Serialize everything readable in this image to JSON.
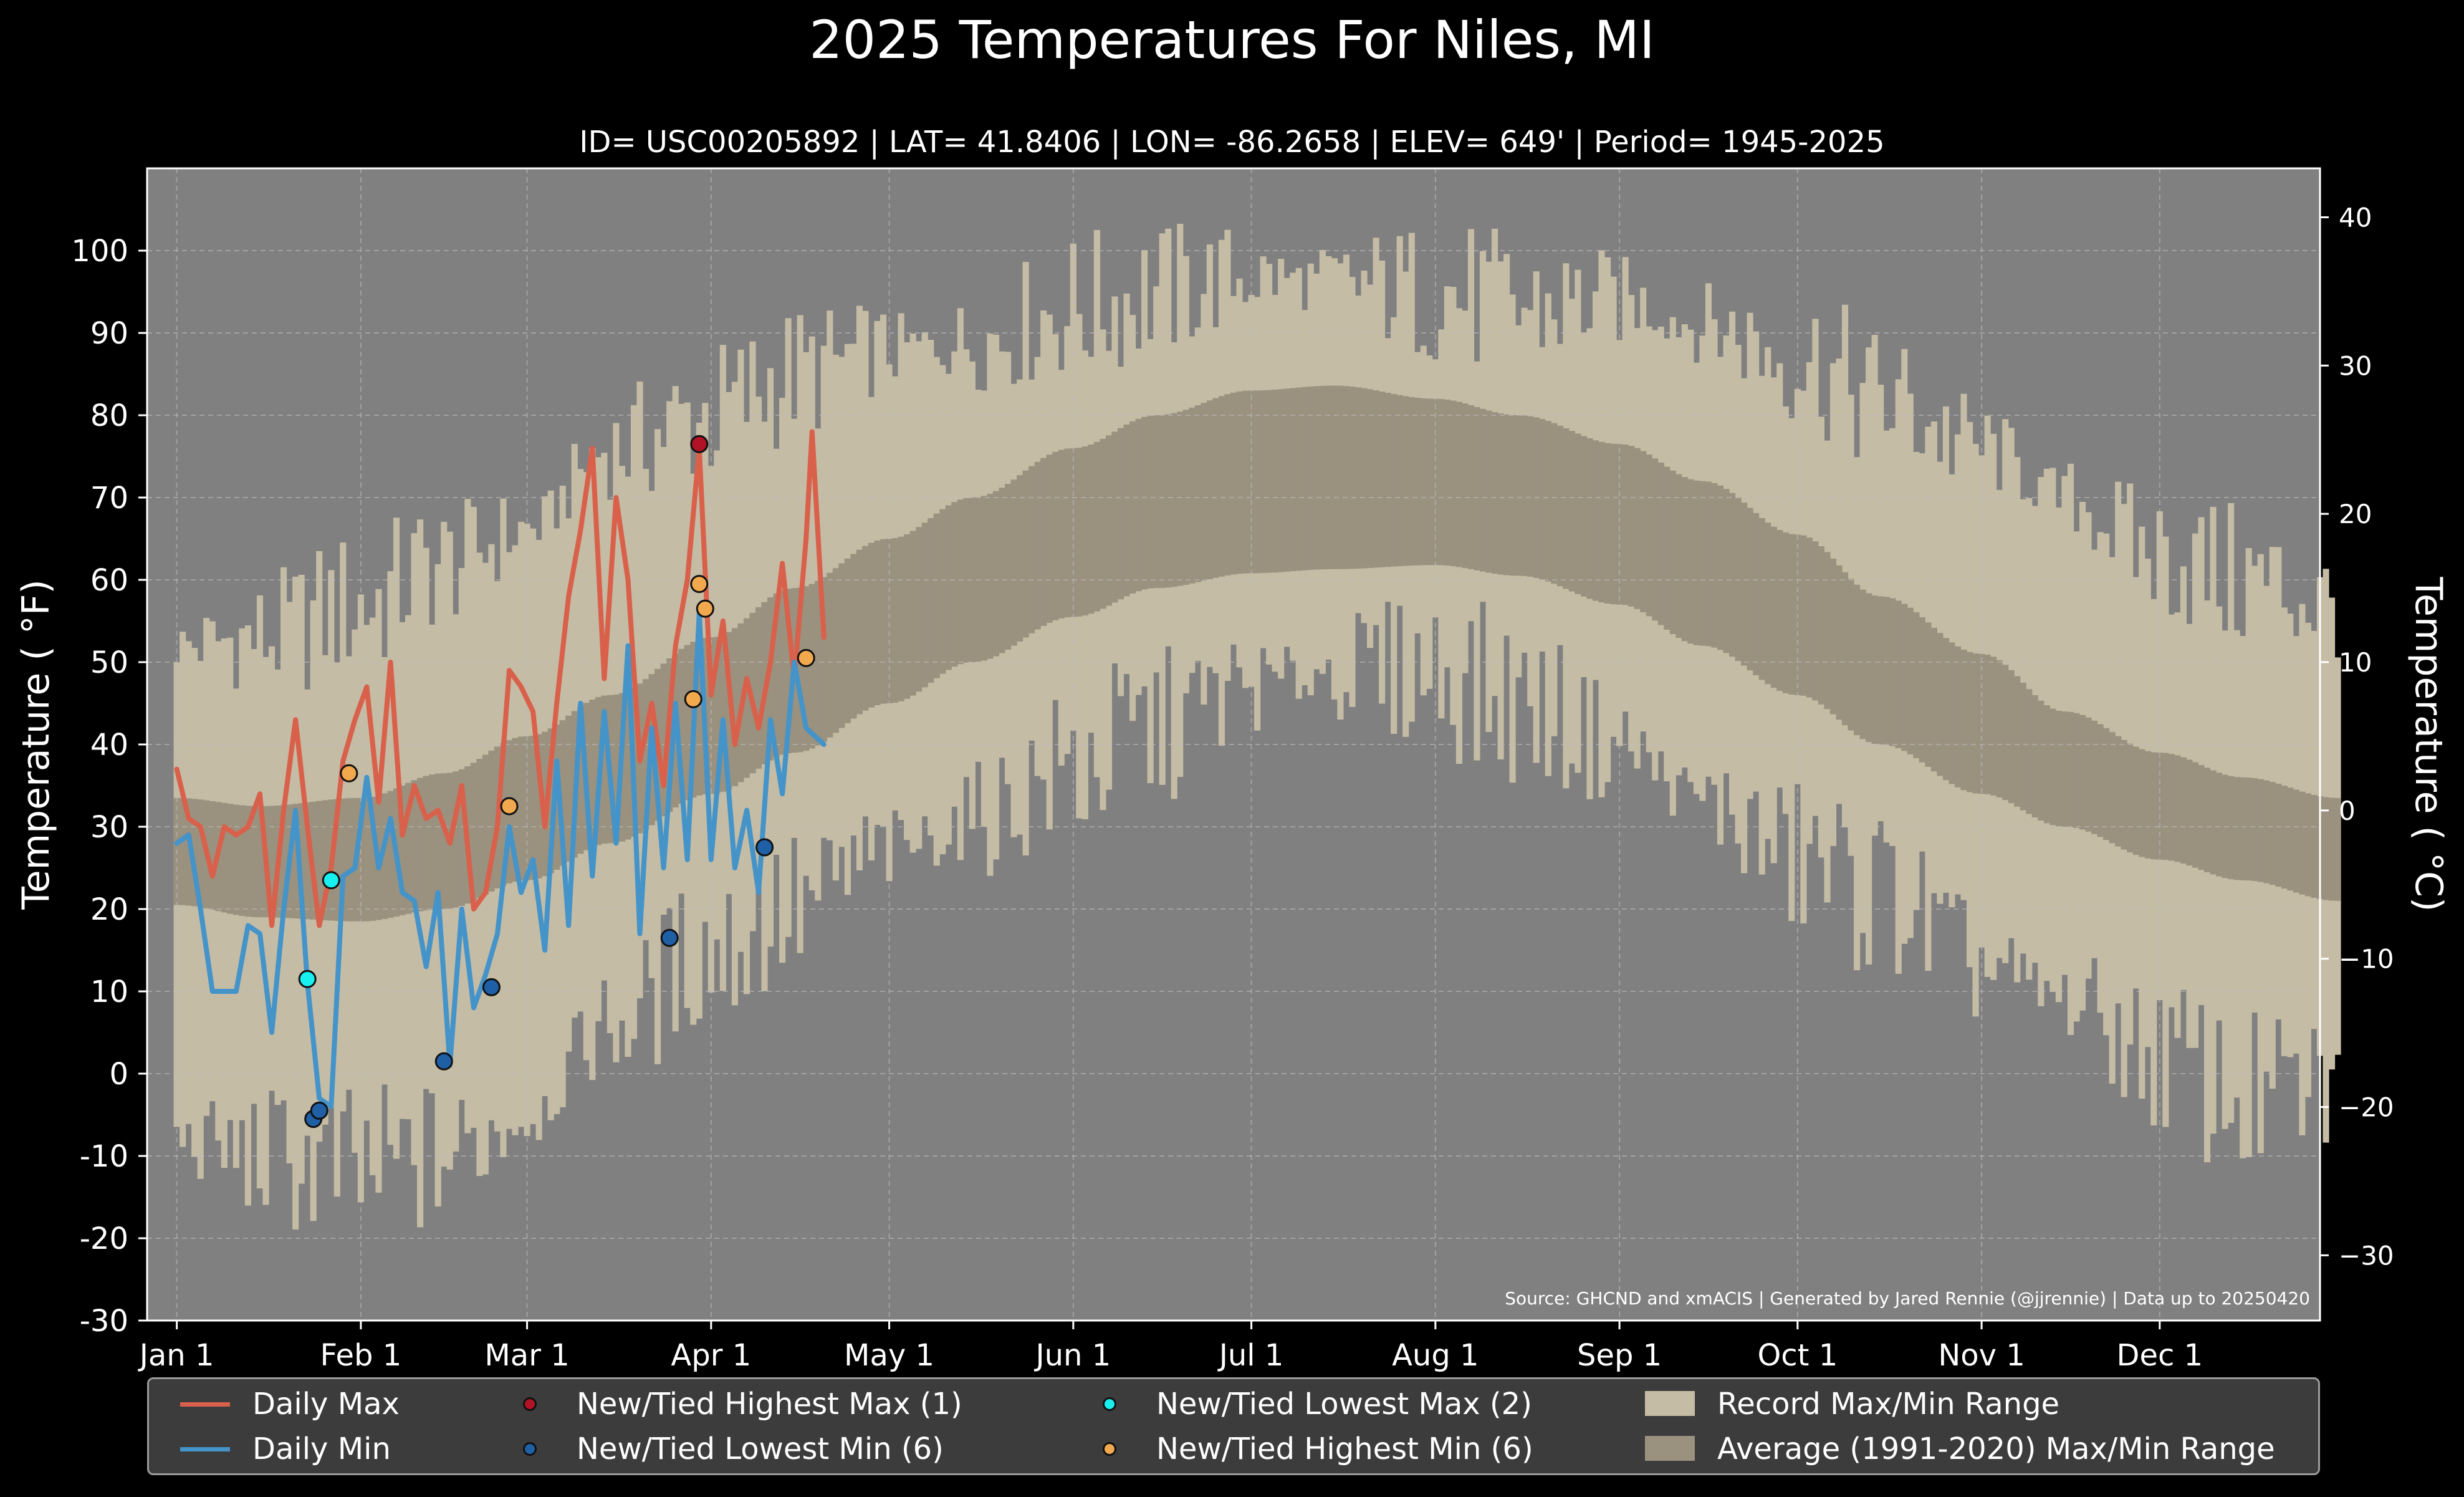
{
  "title": "2025 Temperatures For Niles, MI",
  "subtitle": "ID= USC00205892 | LAT= 41.8406 | LON= -86.2658 | ELEV= 649' | Period= 1945-2025",
  "source_note": "Source: GHCND and xmACIS | Generated by Jared Rennie (@jjrennie) | Data up to 20250420",
  "colors": {
    "background": "#000000",
    "plot_background": "#808080",
    "record_range": "#c5bca5",
    "average_range": "#9a917f",
    "daily_max": "#d9604a",
    "daily_min": "#4493c9",
    "highest_max": "#b11226",
    "lowest_min": "#1f5fa6",
    "lowest_max": "#18f0f0",
    "highest_min": "#f2a94e"
  },
  "legend": {
    "items": [
      {
        "label": "Daily Max",
        "kind": "line",
        "color": "#d9604a"
      },
      {
        "label": "Daily Min",
        "kind": "line",
        "color": "#4493c9"
      },
      {
        "label": "New/Tied Highest Max (1)",
        "kind": "dot",
        "color": "#b11226"
      },
      {
        "label": "New/Tied Lowest Min (6)",
        "kind": "dot",
        "color": "#1f5fa6"
      },
      {
        "label": "New/Tied Lowest Max (2)",
        "kind": "dot",
        "color": "#18f0f0"
      },
      {
        "label": "New/Tied Highest Min (6)",
        "kind": "dot",
        "color": "#f2a94e"
      },
      {
        "label": "Record Max/Min Range",
        "kind": "patch",
        "color": "#c5bca5"
      },
      {
        "label": "Average (1991-2020) Max/Min Range",
        "kind": "patch",
        "color": "#9a917f"
      }
    ]
  },
  "chart_data": {
    "type": "line",
    "title": "2025 Temperatures For Niles, MI",
    "ylabel": "Temperature ($^\\circ$F)",
    "ylabel_text": "Temperature ( °F)",
    "y2label_text": "Temperature ( °C)",
    "ylim": [
      -30,
      110
    ],
    "y2lim_celsius": [
      -34.4,
      43.3
    ],
    "yticks": [
      -30,
      -20,
      -10,
      0,
      10,
      20,
      30,
      40,
      50,
      60,
      70,
      80,
      90,
      100
    ],
    "ytick_labels": [
      "-30",
      "-20",
      "-10",
      "0",
      "10",
      "20",
      "30",
      "40",
      "50",
      "60",
      "70",
      "80",
      "90",
      "100"
    ],
    "y2ticks": [
      -30,
      -20,
      -10,
      0,
      10,
      20,
      30,
      40
    ],
    "y2tick_labels": [
      "−30",
      "−20",
      "−10",
      "0",
      "10",
      "20",
      "30",
      "40"
    ],
    "x_axis": "day of year 2025",
    "xlim": [
      "2024-12-27",
      "2025-12-28"
    ],
    "xticks": [
      "2025-01-01",
      "2025-02-01",
      "2025-03-01",
      "2025-04-01",
      "2025-05-01",
      "2025-06-01",
      "2025-07-01",
      "2025-08-01",
      "2025-09-01",
      "2025-10-01",
      "2025-11-01",
      "2025-12-01"
    ],
    "xtick_labels": [
      "Jan 1",
      "Feb 1",
      "Mar 1",
      "Apr 1",
      "May 1",
      "Jun 1",
      "Jul 1",
      "Aug 1",
      "Sep 1",
      "Oct 1",
      "Nov 1",
      "Dec 1"
    ],
    "grid": true,
    "legend_position": "bottom",
    "record_max_anchors": [
      [
        "2025-01-01",
        52
      ],
      [
        "2025-01-15",
        53
      ],
      [
        "2025-02-01",
        57
      ],
      [
        "2025-02-15",
        62
      ],
      [
        "2025-03-01",
        66
      ],
      [
        "2025-03-15",
        76
      ],
      [
        "2025-04-01",
        80
      ],
      [
        "2025-04-15",
        85
      ],
      [
        "2025-05-01",
        88
      ],
      [
        "2025-05-15",
        89
      ],
      [
        "2025-06-01",
        93
      ],
      [
        "2025-06-15",
        95
      ],
      [
        "2025-07-01",
        97
      ],
      [
        "2025-07-15",
        96
      ],
      [
        "2025-08-01",
        95
      ],
      [
        "2025-08-15",
        93
      ],
      [
        "2025-09-01",
        94
      ],
      [
        "2025-09-15",
        91
      ],
      [
        "2025-10-01",
        87
      ],
      [
        "2025-10-15",
        82
      ],
      [
        "2025-11-01",
        76
      ],
      [
        "2025-11-15",
        70
      ],
      [
        "2025-12-01",
        63
      ],
      [
        "2025-12-15",
        60
      ],
      [
        "2025-12-31",
        57
      ]
    ],
    "record_min_anchors": [
      [
        "2025-01-01",
        -8
      ],
      [
        "2025-01-15",
        -10
      ],
      [
        "2025-02-01",
        -12
      ],
      [
        "2025-02-15",
        -10
      ],
      [
        "2025-03-01",
        -5
      ],
      [
        "2025-03-15",
        6
      ],
      [
        "2025-04-01",
        15
      ],
      [
        "2025-04-15",
        20
      ],
      [
        "2025-05-01",
        27
      ],
      [
        "2025-05-15",
        31
      ],
      [
        "2025-06-01",
        37
      ],
      [
        "2025-06-15",
        42
      ],
      [
        "2025-07-01",
        47
      ],
      [
        "2025-07-15",
        49
      ],
      [
        "2025-08-01",
        49
      ],
      [
        "2025-08-15",
        45
      ],
      [
        "2025-09-01",
        40
      ],
      [
        "2025-09-15",
        33
      ],
      [
        "2025-10-01",
        26
      ],
      [
        "2025-10-15",
        22
      ],
      [
        "2025-11-01",
        13
      ],
      [
        "2025-11-15",
        9
      ],
      [
        "2025-12-01",
        2
      ],
      [
        "2025-12-15",
        -3
      ],
      [
        "2025-12-31",
        -2
      ]
    ],
    "average_max_anchors": [
      [
        "2025-01-01",
        33.5
      ],
      [
        "2025-01-15",
        32.5
      ],
      [
        "2025-02-01",
        33.5
      ],
      [
        "2025-02-15",
        36.5
      ],
      [
        "2025-03-01",
        41
      ],
      [
        "2025-03-15",
        46
      ],
      [
        "2025-04-01",
        53
      ],
      [
        "2025-04-15",
        59
      ],
      [
        "2025-05-01",
        65
      ],
      [
        "2025-05-15",
        70
      ],
      [
        "2025-06-01",
        76
      ],
      [
        "2025-06-15",
        80
      ],
      [
        "2025-07-01",
        83
      ],
      [
        "2025-07-15",
        83.6
      ],
      [
        "2025-08-01",
        82
      ],
      [
        "2025-08-15",
        80
      ],
      [
        "2025-09-01",
        76.5
      ],
      [
        "2025-09-15",
        72
      ],
      [
        "2025-10-01",
        65.5
      ],
      [
        "2025-10-15",
        58
      ],
      [
        "2025-11-01",
        51
      ],
      [
        "2025-11-15",
        44
      ],
      [
        "2025-12-01",
        39
      ],
      [
        "2025-12-15",
        36
      ],
      [
        "2025-12-31",
        33.5
      ]
    ],
    "average_min_anchors": [
      [
        "2025-01-01",
        20.5
      ],
      [
        "2025-01-15",
        19
      ],
      [
        "2025-02-01",
        18.5
      ],
      [
        "2025-02-15",
        20
      ],
      [
        "2025-03-01",
        23.5
      ],
      [
        "2025-03-15",
        28
      ],
      [
        "2025-04-01",
        34
      ],
      [
        "2025-04-15",
        39
      ],
      [
        "2025-05-01",
        45
      ],
      [
        "2025-05-15",
        50
      ],
      [
        "2025-06-01",
        55.5
      ],
      [
        "2025-06-15",
        59
      ],
      [
        "2025-07-01",
        60.8
      ],
      [
        "2025-07-15",
        61.3
      ],
      [
        "2025-08-01",
        61.8
      ],
      [
        "2025-08-15",
        60.5
      ],
      [
        "2025-09-01",
        57
      ],
      [
        "2025-09-15",
        52
      ],
      [
        "2025-10-01",
        46
      ],
      [
        "2025-10-15",
        40
      ],
      [
        "2025-11-01",
        34
      ],
      [
        "2025-11-15",
        30
      ],
      [
        "2025-12-01",
        26
      ],
      [
        "2025-12-15",
        23.5
      ],
      [
        "2025-12-31",
        21
      ]
    ],
    "series": [
      {
        "name": "Daily Max",
        "color": "#d9604a",
        "points": [
          [
            "2025-01-01",
            37
          ],
          [
            "2025-01-03",
            31
          ],
          [
            "2025-01-05",
            30
          ],
          [
            "2025-01-07",
            24
          ],
          [
            "2025-01-09",
            30
          ],
          [
            "2025-01-11",
            29
          ],
          [
            "2025-01-13",
            30
          ],
          [
            "2025-01-15",
            34
          ],
          [
            "2025-01-17",
            18
          ],
          [
            "2025-01-19",
            32
          ],
          [
            "2025-01-21",
            43
          ],
          [
            "2025-01-23",
            30
          ],
          [
            "2025-01-25",
            18
          ],
          [
            "2025-01-27",
            25
          ],
          [
            "2025-01-29",
            38
          ],
          [
            "2025-01-31",
            43
          ],
          [
            "2025-02-02",
            47
          ],
          [
            "2025-02-04",
            33
          ],
          [
            "2025-02-06",
            50
          ],
          [
            "2025-02-08",
            29
          ],
          [
            "2025-02-10",
            35
          ],
          [
            "2025-02-12",
            31
          ],
          [
            "2025-02-14",
            32
          ],
          [
            "2025-02-16",
            28
          ],
          [
            "2025-02-18",
            35
          ],
          [
            "2025-02-20",
            20
          ],
          [
            "2025-02-22",
            22
          ],
          [
            "2025-02-24",
            30
          ],
          [
            "2025-02-26",
            49
          ],
          [
            "2025-02-28",
            47
          ],
          [
            "2025-03-02",
            44
          ],
          [
            "2025-03-04",
            30
          ],
          [
            "2025-03-06",
            45
          ],
          [
            "2025-03-08",
            58
          ],
          [
            "2025-03-10",
            66
          ],
          [
            "2025-03-12",
            76
          ],
          [
            "2025-03-14",
            48
          ],
          [
            "2025-03-16",
            70
          ],
          [
            "2025-03-18",
            60
          ],
          [
            "2025-03-20",
            38
          ],
          [
            "2025-03-22",
            45
          ],
          [
            "2025-03-24",
            35
          ],
          [
            "2025-03-26",
            52
          ],
          [
            "2025-03-28",
            60
          ],
          [
            "2025-03-30",
            76
          ],
          [
            "2025-04-01",
            46
          ],
          [
            "2025-04-03",
            55
          ],
          [
            "2025-04-05",
            40
          ],
          [
            "2025-04-07",
            48
          ],
          [
            "2025-04-09",
            42
          ],
          [
            "2025-04-11",
            50
          ],
          [
            "2025-04-13",
            62
          ],
          [
            "2025-04-15",
            48
          ],
          [
            "2025-04-17",
            65
          ],
          [
            "2025-04-18",
            78
          ],
          [
            "2025-04-20",
            53
          ]
        ]
      },
      {
        "name": "Daily Min",
        "color": "#4493c9",
        "points": [
          [
            "2025-01-01",
            28
          ],
          [
            "2025-01-03",
            29
          ],
          [
            "2025-01-05",
            20
          ],
          [
            "2025-01-07",
            10
          ],
          [
            "2025-01-09",
            10
          ],
          [
            "2025-01-11",
            10
          ],
          [
            "2025-01-13",
            18
          ],
          [
            "2025-01-15",
            17
          ],
          [
            "2025-01-17",
            5
          ],
          [
            "2025-01-19",
            20
          ],
          [
            "2025-01-21",
            32
          ],
          [
            "2025-01-23",
            11
          ],
          [
            "2025-01-25",
            -3
          ],
          [
            "2025-01-27",
            -4
          ],
          [
            "2025-01-29",
            24
          ],
          [
            "2025-01-31",
            25
          ],
          [
            "2025-02-02",
            36
          ],
          [
            "2025-02-04",
            25
          ],
          [
            "2025-02-06",
            31
          ],
          [
            "2025-02-08",
            22
          ],
          [
            "2025-02-10",
            21
          ],
          [
            "2025-02-12",
            13
          ],
          [
            "2025-02-14",
            22
          ],
          [
            "2025-02-16",
            1
          ],
          [
            "2025-02-18",
            20
          ],
          [
            "2025-02-20",
            8
          ],
          [
            "2025-02-22",
            12
          ],
          [
            "2025-02-24",
            17
          ],
          [
            "2025-02-26",
            30
          ],
          [
            "2025-02-28",
            22
          ],
          [
            "2025-03-02",
            26
          ],
          [
            "2025-03-04",
            15
          ],
          [
            "2025-03-06",
            38
          ],
          [
            "2025-03-08",
            18
          ],
          [
            "2025-03-10",
            45
          ],
          [
            "2025-03-12",
            24
          ],
          [
            "2025-03-14",
            44
          ],
          [
            "2025-03-16",
            28
          ],
          [
            "2025-03-18",
            52
          ],
          [
            "2025-03-20",
            17
          ],
          [
            "2025-03-22",
            42
          ],
          [
            "2025-03-24",
            25
          ],
          [
            "2025-03-26",
            45
          ],
          [
            "2025-03-28",
            26
          ],
          [
            "2025-03-30",
            56
          ],
          [
            "2025-04-01",
            26
          ],
          [
            "2025-04-03",
            43
          ],
          [
            "2025-04-05",
            25
          ],
          [
            "2025-04-07",
            32
          ],
          [
            "2025-04-09",
            22
          ],
          [
            "2025-04-11",
            43
          ],
          [
            "2025-04-13",
            34
          ],
          [
            "2025-04-15",
            50
          ],
          [
            "2025-04-17",
            42
          ],
          [
            "2025-04-20",
            40
          ]
        ]
      }
    ],
    "markers": [
      {
        "series": "New/Tied Highest Max (1)",
        "color": "#b11226",
        "points": [
          [
            "2025-03-30",
            76.5
          ]
        ]
      },
      {
        "series": "New/Tied Lowest Min (6)",
        "color": "#1f5fa6",
        "points": [
          [
            "2025-01-24",
            -5.5
          ],
          [
            "2025-01-25",
            -4.5
          ],
          [
            "2025-02-15",
            1.5
          ],
          [
            "2025-02-23",
            10.5
          ],
          [
            "2025-03-25",
            16.5
          ],
          [
            "2025-04-10",
            27.5
          ]
        ]
      },
      {
        "series": "New/Tied Lowest Max (2)",
        "color": "#18f0f0",
        "points": [
          [
            "2025-01-23",
            11.5
          ],
          [
            "2025-01-27",
            23.5
          ]
        ]
      },
      {
        "series": "New/Tied Highest Min (6)",
        "color": "#f2a94e",
        "points": [
          [
            "2025-01-30",
            36.5
          ],
          [
            "2025-02-26",
            32.5
          ],
          [
            "2025-03-29",
            45.5
          ],
          [
            "2025-03-30",
            59.5
          ],
          [
            "2025-03-31",
            56.5
          ],
          [
            "2025-04-17",
            50.5
          ]
        ]
      }
    ]
  }
}
